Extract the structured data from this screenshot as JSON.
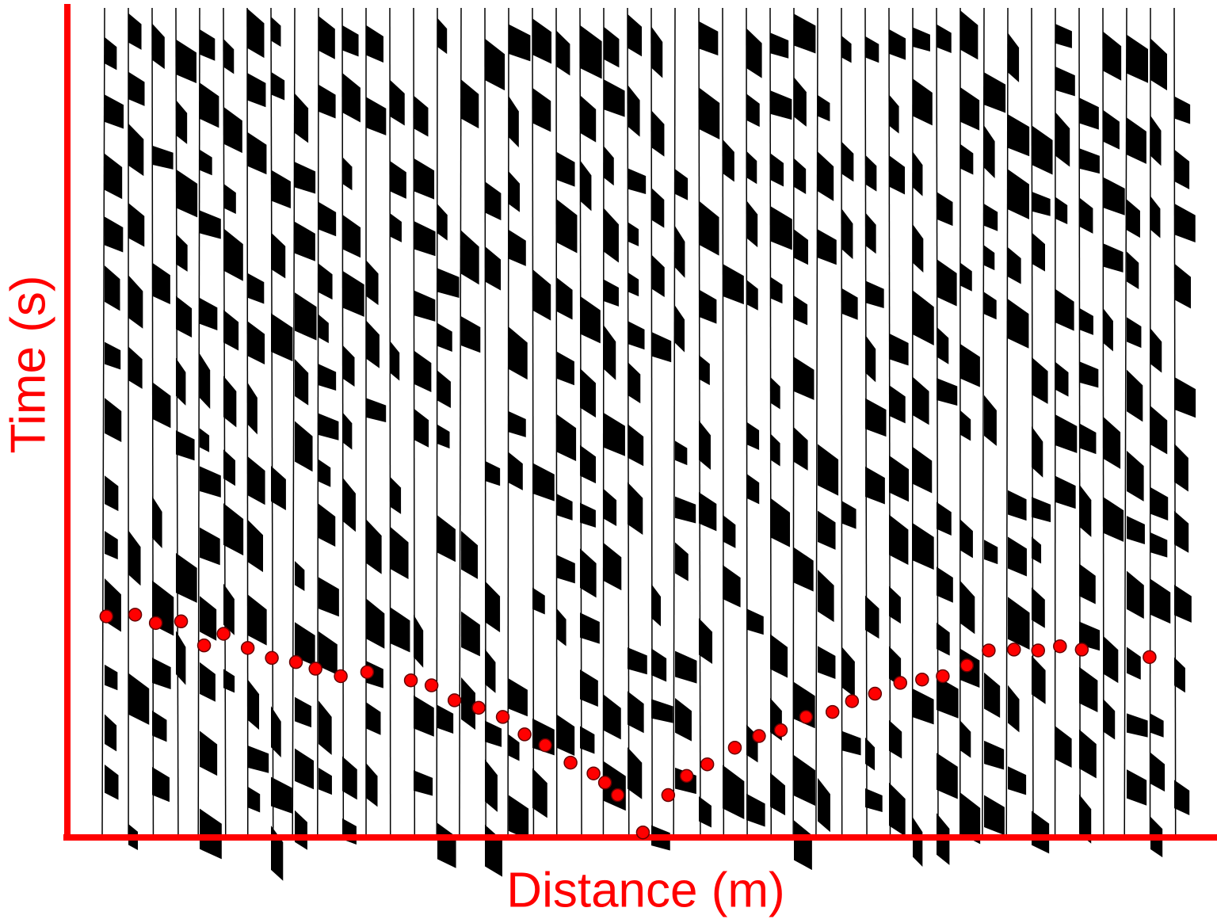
{
  "chart_data": {
    "type": "scatter",
    "x_label": "Distance (m)",
    "y_label": "Time (s)",
    "xlim": [
      0,
      100
    ],
    "ylim": [
      0,
      100
    ],
    "axis_color": "#ff0000",
    "series": [
      {
        "color": "#ff0000",
        "x": [
          3.4,
          5.9,
          7.7,
          9.9,
          11.9,
          13.6,
          15.7,
          17.8,
          19.9,
          21.6,
          23.8,
          26.1,
          29.9,
          31.7,
          33.7,
          35.8,
          37.9,
          39.8,
          41.6,
          43.8,
          45.8,
          46.8,
          47.9,
          50.1,
          52.3,
          53.9,
          55.7,
          58.1,
          60.2,
          62.1,
          64.3,
          66.6,
          68.3,
          70.3,
          72.5,
          74.4,
          76.2,
          78.3,
          80.2,
          82.4,
          84.5,
          86.4,
          88.3,
          94.2
        ],
        "values": [
          26.6,
          26.8,
          25.8,
          26.0,
          23.1,
          24.5,
          22.8,
          21.6,
          21.1,
          20.3,
          19.4,
          19.9,
          18.9,
          18.3,
          16.5,
          15.6,
          14.5,
          12.4,
          11.1,
          9.0,
          7.7,
          6.6,
          5.1,
          0.6,
          5.1,
          7.4,
          8.8,
          10.8,
          12.2,
          12.9,
          14.5,
          15.1,
          16.4,
          17.3,
          18.6,
          19.0,
          19.4,
          20.7,
          22.5,
          22.6,
          22.5,
          23.0,
          22.6,
          21.7
        ]
      }
    ]
  }
}
